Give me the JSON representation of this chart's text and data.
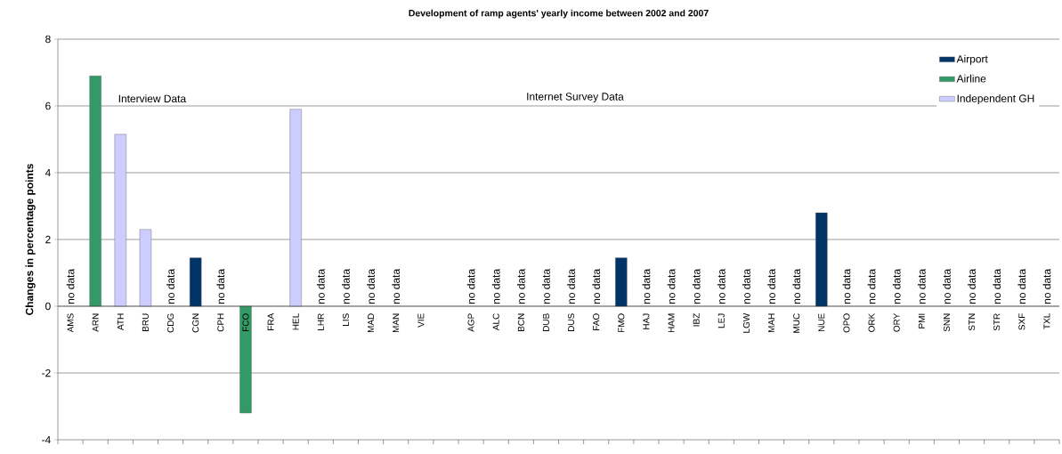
{
  "chart_data": {
    "type": "bar",
    "title": "Development of ramp agents' yearly income between 2002 and 2007",
    "ylabel": "Changes in percentage points",
    "categories": [
      "AMS",
      "ARN",
      "ATH",
      "BRU",
      "CDG",
      "CGN",
      "CPH",
      "FCO",
      "FRA",
      "HEL",
      "LHR",
      "LIS",
      "MAD",
      "MAN",
      "VIE",
      null,
      "AGP",
      "ALC",
      "BCN",
      "DUB",
      "DUS",
      "FAO",
      "FMO",
      "HAJ",
      "HAM",
      "IBZ",
      "LEJ",
      "LGW",
      "MAH",
      "MUC",
      "NUE",
      "OPO",
      "ORK",
      "ORY",
      "PMI",
      "SNN",
      "STN",
      "STR",
      "SXF",
      "TXL"
    ],
    "series": [
      {
        "name": "Airport",
        "color": "#003366",
        "values": [
          null,
          null,
          null,
          null,
          null,
          1.45,
          null,
          null,
          null,
          null,
          null,
          null,
          null,
          null,
          null,
          null,
          null,
          null,
          null,
          null,
          null,
          null,
          1.45,
          null,
          null,
          null,
          null,
          null,
          null,
          null,
          2.8,
          null,
          null,
          null,
          null,
          null,
          null,
          null,
          null,
          null
        ]
      },
      {
        "name": "Airline",
        "color": "#339966",
        "values": [
          null,
          6.9,
          null,
          null,
          null,
          null,
          null,
          -3.2,
          null,
          null,
          null,
          null,
          null,
          null,
          null,
          null,
          null,
          null,
          null,
          null,
          null,
          null,
          null,
          null,
          null,
          null,
          null,
          null,
          null,
          null,
          null,
          null,
          null,
          null,
          null,
          null,
          null,
          null,
          null,
          null
        ]
      },
      {
        "name": "Independent GH",
        "color": "#ccccff",
        "values": [
          null,
          null,
          5.15,
          2.3,
          null,
          null,
          null,
          null,
          null,
          5.9,
          null,
          null,
          null,
          null,
          null,
          null,
          null,
          null,
          null,
          null,
          null,
          null,
          null,
          null,
          null,
          null,
          null,
          null,
          null,
          null,
          null,
          null,
          null,
          null,
          null,
          null,
          null,
          null,
          null,
          null
        ]
      }
    ],
    "value_labels": [
      "no data",
      null,
      null,
      null,
      "no data",
      null,
      "no data",
      null,
      null,
      null,
      "no data",
      "no data",
      "no data",
      "no data",
      null,
      null,
      "no data",
      "no data",
      "no data",
      "no data",
      "no data",
      "no data",
      null,
      "no data",
      "no data",
      "no data",
      "no data",
      "no data",
      "no data",
      "no data",
      null,
      "no data",
      "no data",
      "no data",
      "no data",
      "no data",
      "no data",
      "no data",
      "no data",
      "no data"
    ],
    "annotations": [
      "Interview Data",
      "Internet Survey Data"
    ],
    "ylim": [
      -4,
      8
    ],
    "yticks": [
      -4,
      -2,
      0,
      2,
      4,
      6,
      8
    ],
    "grid": "y",
    "legend": "top right"
  }
}
